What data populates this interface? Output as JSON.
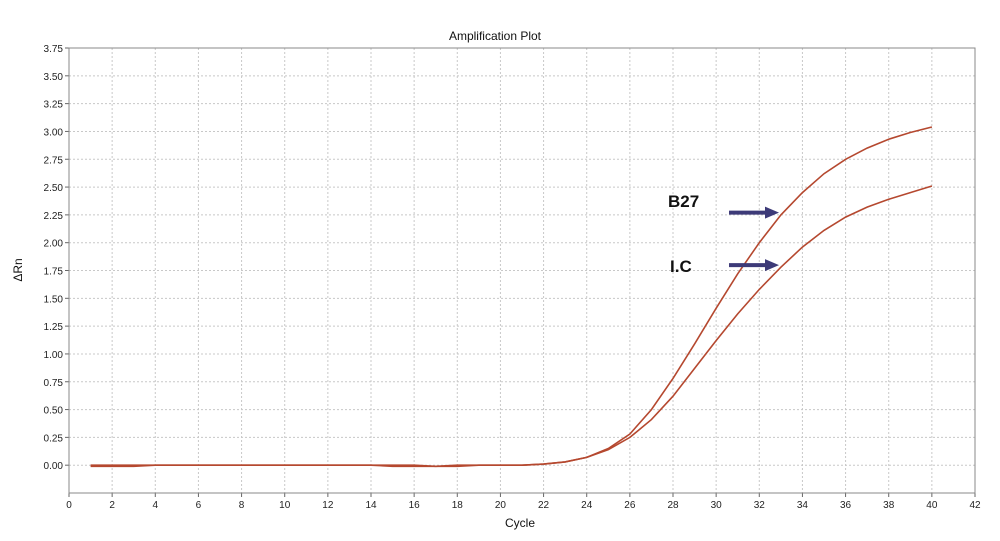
{
  "chart_data": {
    "type": "line",
    "title": "Amplification Plot",
    "xlabel": "Cycle",
    "ylabel": "ΔRn",
    "xlim": [
      0,
      42
    ],
    "ylim": [
      -0.25,
      3.75
    ],
    "xticks": [
      0,
      2,
      4,
      6,
      8,
      10,
      12,
      14,
      16,
      18,
      20,
      22,
      24,
      26,
      28,
      30,
      32,
      34,
      36,
      38,
      40,
      42
    ],
    "yticks": [
      0.0,
      0.25,
      0.5,
      0.75,
      1.0,
      1.25,
      1.5,
      1.75,
      2.0,
      2.25,
      2.5,
      2.75,
      3.0,
      3.25,
      3.5,
      3.75
    ],
    "ytick_labels": [
      "0.00",
      "0.25",
      "0.50",
      "0.75",
      "1.00",
      "1.25",
      "1.50",
      "1.75",
      "2.00",
      "2.25",
      "2.50",
      "2.75",
      "3.00",
      "3.25",
      "3.50",
      "3.75"
    ],
    "grid": true,
    "line_color": "#b5482f",
    "x": [
      1,
      2,
      3,
      4,
      5,
      6,
      7,
      8,
      9,
      10,
      11,
      12,
      13,
      14,
      15,
      16,
      17,
      18,
      19,
      20,
      21,
      22,
      23,
      24,
      25,
      26,
      27,
      28,
      29,
      30,
      31,
      32,
      33,
      34,
      35,
      36,
      37,
      38,
      39,
      40
    ],
    "series": [
      {
        "name": "B27",
        "values": [
          0.0,
          0.0,
          0.0,
          0.0,
          0.0,
          0.0,
          0.0,
          0.0,
          0.0,
          0.0,
          0.0,
          0.0,
          0.0,
          0.0,
          -0.01,
          -0.01,
          -0.01,
          0.0,
          0.0,
          0.0,
          0.0,
          0.01,
          0.03,
          0.07,
          0.15,
          0.28,
          0.5,
          0.78,
          1.09,
          1.41,
          1.72,
          2.0,
          2.25,
          2.45,
          2.62,
          2.75,
          2.85,
          2.93,
          2.99,
          3.04
        ]
      },
      {
        "name": "I.C",
        "values": [
          -0.01,
          -0.01,
          -0.01,
          0.0,
          0.0,
          0.0,
          0.0,
          0.0,
          0.0,
          0.0,
          0.0,
          0.0,
          0.0,
          0.0,
          0.0,
          0.0,
          -0.01,
          -0.01,
          0.0,
          0.0,
          0.0,
          0.01,
          0.03,
          0.07,
          0.14,
          0.25,
          0.41,
          0.62,
          0.87,
          1.12,
          1.36,
          1.58,
          1.78,
          1.96,
          2.11,
          2.23,
          2.32,
          2.39,
          2.45,
          2.51
        ]
      }
    ],
    "annotations": [
      {
        "label": "B27",
        "series": "B27",
        "arrow_color": "#3d3a78"
      },
      {
        "label": "I.C",
        "series": "I.C",
        "arrow_color": "#3d3a78"
      }
    ]
  }
}
